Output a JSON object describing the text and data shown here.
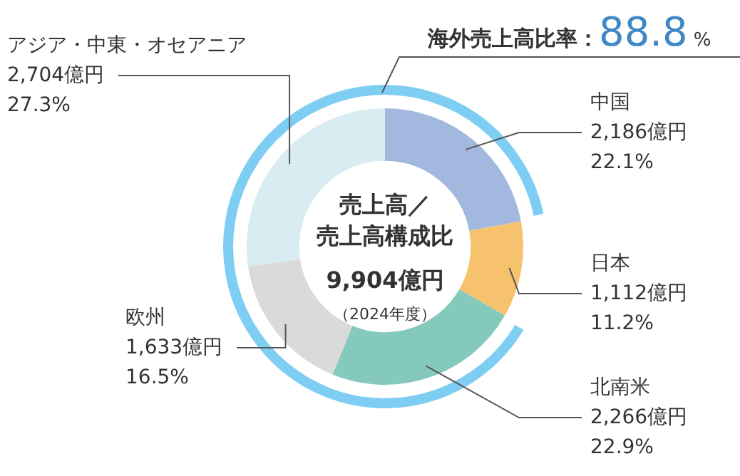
{
  "chart_data": {
    "type": "donut",
    "title": "売上高／売上高構成比",
    "subtitle": "9,904億円",
    "categories": [
      "中国",
      "日本",
      "北南米",
      "欧州",
      "アジア・中東・オセアニア"
    ],
    "values": [
      2186,
      1112,
      2266,
      1633,
      2704
    ],
    "colors": [
      "#a2b8df",
      "#f6c26e",
      "#85c9bc",
      "#dadada",
      "#d8ecf2"
    ],
    "value_labels": [
      "2,186億円\n22.1%",
      "1,112億円\n11.2%",
      "2,266億円\n22.9%",
      "1,633億円\n16.5%",
      "2,704億円\n27.3%"
    ],
    "annotations": [
      "（2024年度）",
      "海外売上高比率：88.8%"
    ],
    "legend": false
  }
}
